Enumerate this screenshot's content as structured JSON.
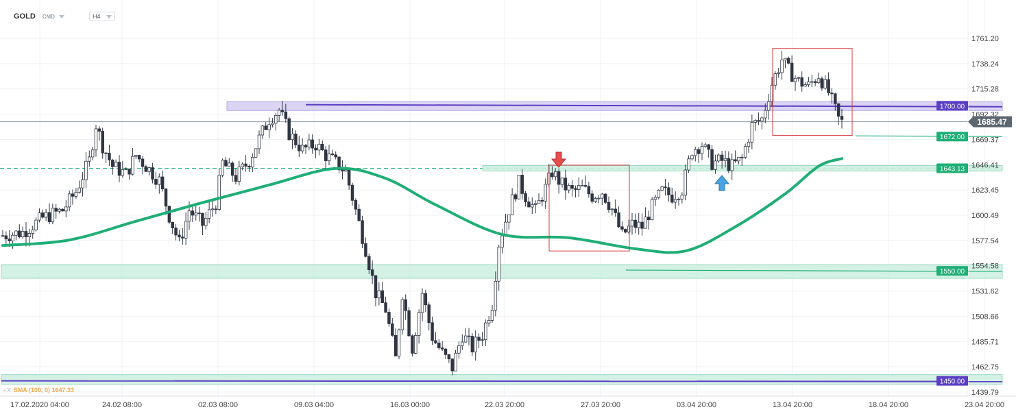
{
  "header": {
    "symbol": "GOLD",
    "class": "CMD",
    "timeframe": "H4"
  },
  "indicator_legend": "SMA (100, 0) 1647.33",
  "colors": {
    "bull_candle": "#ffffff",
    "bear_candle": "#2f3542",
    "sma": "#1fae76",
    "resistance_zone": "#cfc6ef",
    "resistance_line": "#5b3fc4",
    "support_zone": "#cdeee0",
    "support_line": "#1fae76",
    "current_price_badge": "#5b6670",
    "box_outline": "#d63b3b",
    "down_arrow": "#e74c4c",
    "up_arrow": "#4aa3df"
  },
  "chart_data": {
    "type": "candlestick",
    "instrument": "GOLD",
    "timeframe": "H4",
    "y_ticks": [
      1761.2,
      1738.24,
      1715.28,
      1692.32,
      1669.37,
      1646.41,
      1623.45,
      1600.49,
      1577.54,
      1554.58,
      1531.62,
      1508.66,
      1485.71,
      1462.75,
      1439.79
    ],
    "ylim": [
      1439.79,
      1761.2
    ],
    "x_ticks": [
      "17.02.2020 04:00",
      "24.02 08:00",
      "02.03 08:00",
      "09.03 04:00",
      "16.03 00:00",
      "22.03 20:00",
      "27.03 20:00",
      "03.04 20:00",
      "13.04 20:00",
      "18.04 20:00",
      "23.04 20:00"
    ],
    "current_price": 1685.47,
    "levels": [
      {
        "value": 1700.0,
        "label": "1700.00",
        "kind": "resistance-zone"
      },
      {
        "value": 1672.0,
        "label": "1672.00",
        "kind": "line"
      },
      {
        "value": 1643.13,
        "label": "1643.13",
        "kind": "dashed-support"
      },
      {
        "value": 1550.0,
        "label": "1550.00",
        "kind": "support-zone"
      },
      {
        "value": 1450.0,
        "label": "1450.00",
        "kind": "support-zone"
      }
    ],
    "sma_period": 100,
    "sma_value": 1647.33,
    "price_path": [
      {
        "x": 0,
        "y": 1582
      },
      {
        "x": 6,
        "y": 1585
      },
      {
        "x": 12,
        "y": 1598
      },
      {
        "x": 18,
        "y": 1605
      },
      {
        "x": 22,
        "y": 1622
      },
      {
        "x": 26,
        "y": 1650
      },
      {
        "x": 28,
        "y": 1683
      },
      {
        "x": 30,
        "y": 1664
      },
      {
        "x": 33,
        "y": 1645
      },
      {
        "x": 37,
        "y": 1638
      },
      {
        "x": 40,
        "y": 1655
      },
      {
        "x": 44,
        "y": 1642
      },
      {
        "x": 47,
        "y": 1632
      },
      {
        "x": 50,
        "y": 1600
      },
      {
        "x": 53,
        "y": 1575
      },
      {
        "x": 56,
        "y": 1605
      },
      {
        "x": 60,
        "y": 1592
      },
      {
        "x": 64,
        "y": 1612
      },
      {
        "x": 66,
        "y": 1648
      },
      {
        "x": 70,
        "y": 1635
      },
      {
        "x": 74,
        "y": 1650
      },
      {
        "x": 77,
        "y": 1670
      },
      {
        "x": 80,
        "y": 1688
      },
      {
        "x": 83,
        "y": 1696
      },
      {
        "x": 86,
        "y": 1675
      },
      {
        "x": 90,
        "y": 1660
      },
      {
        "x": 94,
        "y": 1665
      },
      {
        "x": 97,
        "y": 1655
      },
      {
        "x": 100,
        "y": 1648
      },
      {
        "x": 103,
        "y": 1640
      },
      {
        "x": 106,
        "y": 1605
      },
      {
        "x": 109,
        "y": 1570
      },
      {
        "x": 112,
        "y": 1530
      },
      {
        "x": 115,
        "y": 1515
      },
      {
        "x": 118,
        "y": 1470
      },
      {
        "x": 120,
        "y": 1530
      },
      {
        "x": 123,
        "y": 1480
      },
      {
        "x": 126,
        "y": 1530
      },
      {
        "x": 129,
        "y": 1490
      },
      {
        "x": 132,
        "y": 1475
      },
      {
        "x": 135,
        "y": 1462
      },
      {
        "x": 138,
        "y": 1492
      },
      {
        "x": 141,
        "y": 1480
      },
      {
        "x": 144,
        "y": 1492
      },
      {
        "x": 147,
        "y": 1520
      },
      {
        "x": 149,
        "y": 1575
      },
      {
        "x": 152,
        "y": 1606
      },
      {
        "x": 155,
        "y": 1630
      },
      {
        "x": 157,
        "y": 1618
      },
      {
        "x": 160,
        "y": 1605
      },
      {
        "x": 163,
        "y": 1625
      },
      {
        "x": 165,
        "y": 1640
      },
      {
        "x": 168,
        "y": 1628
      },
      {
        "x": 171,
        "y": 1622
      },
      {
        "x": 174,
        "y": 1625
      },
      {
        "x": 177,
        "y": 1618
      },
      {
        "x": 180,
        "y": 1622
      },
      {
        "x": 183,
        "y": 1606
      },
      {
        "x": 186,
        "y": 1582
      },
      {
        "x": 189,
        "y": 1592
      },
      {
        "x": 192,
        "y": 1590
      },
      {
        "x": 195,
        "y": 1608
      },
      {
        "x": 198,
        "y": 1622
      },
      {
        "x": 201,
        "y": 1618
      },
      {
        "x": 204,
        "y": 1624
      },
      {
        "x": 207,
        "y": 1660
      },
      {
        "x": 210,
        "y": 1665
      },
      {
        "x": 213,
        "y": 1648
      },
      {
        "x": 216,
        "y": 1650
      },
      {
        "x": 219,
        "y": 1645
      },
      {
        "x": 222,
        "y": 1652
      },
      {
        "x": 225,
        "y": 1682
      },
      {
        "x": 228,
        "y": 1688
      },
      {
        "x": 231,
        "y": 1720
      },
      {
        "x": 234,
        "y": 1742
      },
      {
        "x": 236,
        "y": 1732
      },
      {
        "x": 239,
        "y": 1722
      },
      {
        "x": 242,
        "y": 1718
      },
      {
        "x": 245,
        "y": 1728
      },
      {
        "x": 248,
        "y": 1712
      },
      {
        "x": 250,
        "y": 1696
      },
      {
        "x": 251,
        "y": 1688
      },
      {
        "x": 252,
        "y": 1685
      }
    ],
    "sma_path": [
      {
        "x": 0,
        "y": 1573
      },
      {
        "x": 20,
        "y": 1578
      },
      {
        "x": 40,
        "y": 1595
      },
      {
        "x": 60,
        "y": 1612
      },
      {
        "x": 80,
        "y": 1628
      },
      {
        "x": 100,
        "y": 1643
      },
      {
        "x": 115,
        "y": 1634
      },
      {
        "x": 130,
        "y": 1610
      },
      {
        "x": 150,
        "y": 1583
      },
      {
        "x": 170,
        "y": 1580
      },
      {
        "x": 190,
        "y": 1570
      },
      {
        "x": 205,
        "y": 1568
      },
      {
        "x": 220,
        "y": 1590
      },
      {
        "x": 235,
        "y": 1620
      },
      {
        "x": 245,
        "y": 1645
      },
      {
        "x": 252,
        "y": 1652
      }
    ]
  }
}
